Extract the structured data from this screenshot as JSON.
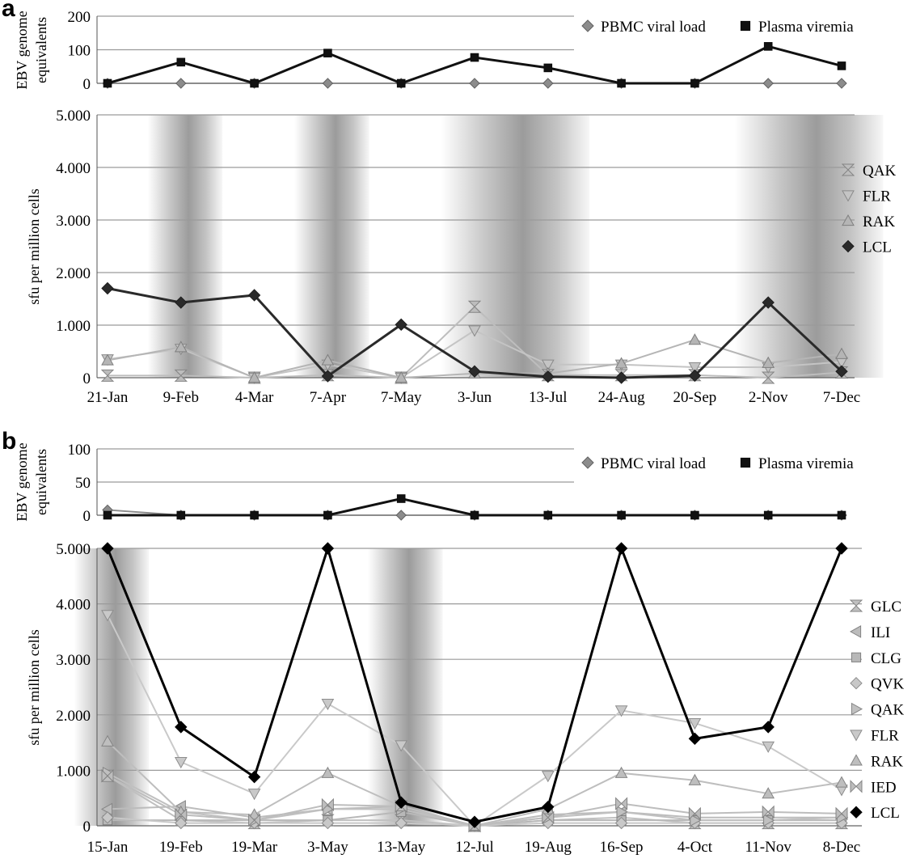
{
  "chart_data": [
    {
      "panel": "a",
      "type": "line",
      "title": "",
      "xlabel": "",
      "ylabel": "EBV genome equivalents",
      "ylim": [
        0,
        200
      ],
      "yticks": [
        "0",
        "100",
        "200"
      ],
      "categories": [
        "21-Jan",
        "9-Feb",
        "4-Mar",
        "7-Apr",
        "7-May",
        "3-Jun",
        "13-Jul",
        "24-Aug",
        "20-Sep",
        "2-Nov",
        "7-Dec"
      ],
      "legend_position": "top-right",
      "grid": true,
      "series": [
        {
          "name": "PBMC viral load",
          "marker": "diamond",
          "color": "#8c8c8c",
          "values": [
            0,
            0,
            0,
            0,
            0,
            0,
            0,
            0,
            0,
            0,
            0
          ]
        },
        {
          "name": "Plasma viremia",
          "marker": "square",
          "color": "#111111",
          "values": [
            0,
            63,
            0,
            90,
            0,
            77,
            46,
            0,
            0,
            110,
            52
          ]
        }
      ]
    },
    {
      "panel": "a",
      "type": "line",
      "title": "",
      "xlabel": "",
      "ylabel": "sfu per million cells",
      "ylim": [
        0,
        5000
      ],
      "yticks": [
        "0",
        "1.000",
        "2.000",
        "3.000",
        "4.000",
        "5.000"
      ],
      "categories": [
        "21-Jan",
        "9-Feb",
        "4-Mar",
        "7-Apr",
        "7-May",
        "3-Jun",
        "13-Jul",
        "24-Aug",
        "20-Sep",
        "2-Nov",
        "7-Dec"
      ],
      "legend_position": "right",
      "grid": true,
      "shaded_periods": [
        [
          1,
          1
        ],
        [
          3,
          3
        ],
        [
          5,
          6
        ],
        [
          9,
          10
        ]
      ],
      "series": [
        {
          "name": "QAK",
          "marker": "hourglass",
          "color": "#bdbdbd",
          "values": [
            40,
            40,
            0,
            50,
            0,
            1350,
            50,
            50,
            50,
            0,
            100
          ]
        },
        {
          "name": "FLR",
          "marker": "triangle-down",
          "color": "#c4c4c4",
          "values": [
            350,
            550,
            0,
            250,
            0,
            900,
            250,
            250,
            200,
            200,
            300
          ]
        },
        {
          "name": "RAK",
          "marker": "triangle-up",
          "color": "#b5b5b5",
          "values": [
            330,
            580,
            0,
            330,
            0,
            80,
            80,
            270,
            720,
            280,
            450
          ]
        },
        {
          "name": "LCL",
          "marker": "diamond",
          "color": "#2a2a2a",
          "values": [
            1700,
            1430,
            1570,
            30,
            1010,
            120,
            20,
            0,
            40,
            1430,
            120
          ]
        }
      ]
    },
    {
      "panel": "b",
      "type": "line",
      "title": "",
      "xlabel": "",
      "ylabel": "EBV genome equivalents",
      "ylim": [
        0,
        100
      ],
      "yticks": [
        "0",
        "50",
        "100"
      ],
      "categories": [
        "15-Jan",
        "19-Feb",
        "19-Mar",
        "3-May",
        "13-May",
        "12-Jul",
        "19-Aug",
        "16-Sep",
        "4-Oct",
        "11-Nov",
        "8-Dec"
      ],
      "legend_position": "top-right",
      "grid": true,
      "series": [
        {
          "name": "PBMC viral load",
          "marker": "diamond",
          "color": "#8c8c8c",
          "values": [
            8,
            0,
            0,
            0,
            0,
            0,
            0,
            0,
            0,
            0,
            0
          ]
        },
        {
          "name": "Plasma viremia",
          "marker": "square",
          "color": "#111111",
          "values": [
            0,
            0,
            0,
            0,
            25,
            0,
            0,
            0,
            0,
            0,
            0
          ]
        }
      ]
    },
    {
      "panel": "b",
      "type": "line",
      "title": "",
      "xlabel": "",
      "ylabel": "sfu per million cells",
      "ylim": [
        0,
        5000
      ],
      "yticks": [
        "0",
        "1.000",
        "2.000",
        "3.000",
        "4.000",
        "5.000"
      ],
      "categories": [
        "15-Jan",
        "19-Feb",
        "19-Mar",
        "3-May",
        "13-May",
        "12-Jul",
        "19-Aug",
        "16-Sep",
        "4-Oct",
        "11-Nov",
        "8-Dec"
      ],
      "legend_position": "right",
      "grid": true,
      "shaded_periods": [
        [
          0,
          0
        ],
        [
          4,
          4
        ]
      ],
      "series": [
        {
          "name": "GLC",
          "marker": "hourglass",
          "color": "#c0c0c0",
          "values": [
            900,
            100,
            50,
            100,
            100,
            0,
            100,
            150,
            50,
            50,
            50
          ]
        },
        {
          "name": "ILI",
          "marker": "triangle-left",
          "color": "#bcbcbc",
          "values": [
            300,
            350,
            150,
            300,
            350,
            0,
            200,
            250,
            150,
            150,
            150
          ]
        },
        {
          "name": "CLG",
          "marker": "square",
          "color": "#b8b8b8",
          "values": [
            100,
            100,
            100,
            100,
            250,
            0,
            100,
            100,
            100,
            100,
            100
          ]
        },
        {
          "name": "QVK",
          "marker": "diamond",
          "color": "#c8c8c8",
          "values": [
            150,
            50,
            50,
            50,
            50,
            0,
            50,
            50,
            50,
            50,
            50
          ]
        },
        {
          "name": "QAK",
          "marker": "triangle-right",
          "color": "#c0c0c0",
          "values": [
            950,
            250,
            100,
            300,
            300,
            0,
            150,
            250,
            100,
            100,
            150
          ]
        },
        {
          "name": "FLR",
          "marker": "triangle-down",
          "color": "#c9c9c9",
          "values": [
            3800,
            1150,
            580,
            2200,
            1450,
            0,
            900,
            2080,
            1850,
            1430,
            650
          ]
        },
        {
          "name": "RAK",
          "marker": "triangle-up",
          "color": "#bebebe",
          "values": [
            1520,
            250,
            200,
            950,
            350,
            0,
            300,
            950,
            820,
            580,
            780
          ]
        },
        {
          "name": "IED",
          "marker": "bowtie",
          "color": "#bdbdbd",
          "values": [
            900,
            200,
            100,
            380,
            350,
            0,
            150,
            400,
            220,
            250,
            220
          ]
        },
        {
          "name": "LCL",
          "marker": "diamond",
          "color": "#000000",
          "values": [
            5000,
            1780,
            880,
            5000,
            420,
            70,
            340,
            5000,
            1570,
            1780,
            5000
          ]
        }
      ]
    }
  ]
}
